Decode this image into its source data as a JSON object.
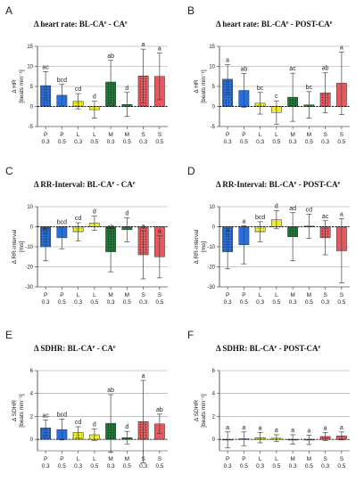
{
  "colors": {
    "P": "#2b6fd6",
    "L": "#ecec3a",
    "M": "#1b7a34",
    "S": "#e8585c",
    "gridline": "#9a9a9a",
    "errorbar": "#444444"
  },
  "hatch_pattern_note": "dotted pattern on 0.3 bars",
  "chart_data": [
    {
      "id": "A",
      "letter": "A",
      "type": "bar",
      "title_prefix": "Δ heart rate:",
      "title_main": "BL-CA",
      "title_sup": "e",
      "title_mid": " - ",
      "title_end": "CA",
      "title_sup2": "e",
      "ylabel_line1": "Δ HR",
      "ylabel_line2": "[beats min⁻¹]",
      "ylim": [
        -5,
        15
      ],
      "yticks": [
        -5,
        0,
        5,
        10,
        15
      ],
      "categories": [
        "P 0.3",
        "P 0.5",
        "L 0.3",
        "L 0.5",
        "M 0.3",
        "M 0.5",
        "S 0.3",
        "S 0.5"
      ],
      "xtick_top": [
        "P",
        "P",
        "L",
        "L",
        "M",
        "M",
        "S",
        "S"
      ],
      "xtick_bottom": [
        "0.3",
        "0.5",
        "0.3",
        "0.5",
        "0.3",
        "0.5",
        "0.3",
        "0.5"
      ],
      "values": [
        5.2,
        2.8,
        1.3,
        -0.8,
        6.1,
        0.5,
        7.6,
        7.5
      ],
      "err": [
        3.5,
        2.7,
        1.9,
        2.1,
        5.4,
        3.0,
        6.7,
        5.8
      ],
      "letters": [
        "ac",
        "bcd",
        "cd",
        "d",
        "ab",
        "d",
        "a",
        "a"
      ]
    },
    {
      "id": "B",
      "letter": "B",
      "type": "bar",
      "title_prefix": "Δ heart rate:",
      "title_main": "BL-CA",
      "title_sup": "e",
      "title_mid": " - ",
      "title_end": "POST-CA",
      "title_sup2": "e",
      "ylabel_line1": "Δ HR",
      "ylabel_line2": "[beats min⁻¹]",
      "ylim": [
        -5,
        15
      ],
      "yticks": [
        -5,
        0,
        5,
        10,
        15
      ],
      "categories": [
        "P 0.3",
        "P 0.5",
        "L 0.3",
        "L 0.5",
        "M 0.3",
        "M 0.5",
        "S 0.3",
        "S 0.5"
      ],
      "xtick_top": [
        "P",
        "P",
        "L",
        "L",
        "M",
        "M",
        "S",
        "S"
      ],
      "xtick_bottom": [
        "0.3",
        "0.5",
        "0.3",
        "0.5",
        "0.3",
        "0.5",
        "0.3",
        "0.5"
      ],
      "values": [
        6.8,
        4.0,
        0.8,
        -1.5,
        2.3,
        0.4,
        3.4,
        5.8
      ],
      "err": [
        3.6,
        4.2,
        2.7,
        2.9,
        6.0,
        3.3,
        5.0,
        7.8
      ],
      "letters": [
        "a",
        "ab",
        "bc",
        "c",
        "ac",
        "bc",
        "ab",
        "a"
      ]
    },
    {
      "id": "C",
      "letter": "C",
      "type": "bar",
      "title_prefix": "Δ RR-Interval:",
      "title_main": "BL-CA",
      "title_sup": "e",
      "title_mid": " - ",
      "title_end": "CA",
      "title_sup2": "e",
      "ylabel_line1": "Δ RR-Interval",
      "ylabel_line2": "[ms]",
      "ylim": [
        -30,
        10
      ],
      "yticks": [
        -30,
        -20,
        -10,
        0,
        10
      ],
      "categories": [
        "P 0.3",
        "P 0.5",
        "L 0.3",
        "L 0.5",
        "M 0.3",
        "M 0.5",
        "S 0.3",
        "S 0.5"
      ],
      "xtick_top": [
        "P",
        "P",
        "L",
        "L",
        "M",
        "M",
        "S",
        "S"
      ],
      "xtick_bottom": [
        "0.3",
        "0.5",
        "0.3",
        "0.5",
        "0.3",
        "0.5",
        "0.3",
        "0.5"
      ],
      "values": [
        -10.0,
        -5.5,
        -2.5,
        1.8,
        -12.5,
        -1.5,
        -14.0,
        -15.0
      ],
      "err": [
        7.0,
        5.5,
        4.5,
        3.5,
        10.0,
        6.0,
        12.0,
        10.5
      ],
      "letters": [
        "ac",
        "bcd",
        "cd",
        "d",
        "ab",
        "d",
        "a",
        "a"
      ]
    },
    {
      "id": "D",
      "letter": "D",
      "type": "bar",
      "title_prefix": "Δ RR-Interval:",
      "title_main": "BL-CA",
      "title_sup": "e",
      "title_mid": " - ",
      "title_end": "POST-CA",
      "title_sup2": "e",
      "ylabel_line1": "Δ RR-Interval",
      "ylabel_line2": "[ms]",
      "ylim": [
        -30,
        10
      ],
      "yticks": [
        -30,
        -20,
        -10,
        0,
        10
      ],
      "categories": [
        "P 0.3",
        "P 0.5",
        "L 0.3",
        "L 0.5",
        "M 0.3",
        "M 0.5",
        "S 0.3",
        "S 0.5"
      ],
      "xtick_top": [
        "P",
        "P",
        "L",
        "L",
        "M",
        "M",
        "S",
        "S"
      ],
      "xtick_bottom": [
        "0.3",
        "0.5",
        "0.3",
        "0.5",
        "0.3",
        "0.5",
        "0.3",
        "0.5"
      ],
      "values": [
        -12.5,
        -9.0,
        -2.5,
        3.5,
        -5.0,
        0.3,
        -5.5,
        -12.0
      ],
      "err": [
        8.5,
        9.5,
        5.0,
        4.5,
        12.0,
        6.0,
        8.5,
        16.0
      ],
      "letters": [
        "a",
        "a",
        "bcd",
        "d",
        "ad",
        "cd",
        "ac",
        "a"
      ]
    },
    {
      "id": "E",
      "letter": "E",
      "type": "bar",
      "title_prefix": "Δ SDHR:",
      "title_main": "BL-CA",
      "title_sup": "e",
      "title_mid": " - ",
      "title_end": "CA",
      "title_sup2": "e",
      "ylabel_line1": "Δ SDHR",
      "ylabel_line2": "[beats min⁻¹]",
      "ylim": [
        -1,
        6
      ],
      "yticks": [
        0,
        2,
        4,
        6
      ],
      "categories": [
        "P 0.3",
        "P 0.5",
        "L 0.3",
        "L 0.5",
        "M 0.3",
        "M 0.5",
        "S 0.3",
        "S 0.5"
      ],
      "xtick_top": [
        "P",
        "P",
        "L",
        "L",
        "M",
        "M",
        "S",
        "S"
      ],
      "xtick_bottom": [
        "0.3",
        "0.5",
        "0.3",
        "0.5",
        "0.3",
        "0.5",
        "0.3",
        "0.5"
      ],
      "values": [
        1.0,
        0.85,
        0.6,
        0.4,
        1.4,
        0.15,
        1.55,
        1.35
      ],
      "err": [
        0.7,
        0.9,
        0.5,
        0.5,
        2.5,
        0.55,
        3.6,
        0.85
      ],
      "letters": [
        "ac",
        "bcd",
        "cd",
        "d",
        "ab",
        "d",
        "a",
        "ab"
      ]
    },
    {
      "id": "F",
      "letter": "F",
      "type": "bar",
      "title_prefix": "Δ SDHR:",
      "title_main": "BL-CA",
      "title_sup": "e",
      "title_mid": " - ",
      "title_end": "POST-CA",
      "title_sup2": "e",
      "ylabel_line1": "Δ SDHR",
      "ylabel_line2": "[beats min⁻¹]",
      "ylim": [
        -1,
        6
      ],
      "yticks": [
        0,
        2,
        4,
        6
      ],
      "categories": [
        "P 0.3",
        "P 0.5",
        "L 0.3",
        "L 0.5",
        "M 0.3",
        "M 0.5",
        "S 0.3",
        "S 0.5"
      ],
      "xtick_top": [
        "P",
        "P",
        "L",
        "L",
        "M",
        "M",
        "S",
        "S"
      ],
      "xtick_bottom": [
        "0.3",
        "0.5",
        "0.3",
        "0.5",
        "0.3",
        "0.5",
        "0.3",
        "0.5"
      ],
      "values": [
        -0.05,
        0.05,
        0.15,
        0.1,
        0.0,
        -0.05,
        0.25,
        0.3
      ],
      "err": [
        0.7,
        0.6,
        0.45,
        0.3,
        0.4,
        0.4,
        0.35,
        0.35
      ],
      "letters": [
        "a",
        "a",
        "a",
        "a",
        "a",
        "a",
        "a",
        "a"
      ]
    }
  ]
}
